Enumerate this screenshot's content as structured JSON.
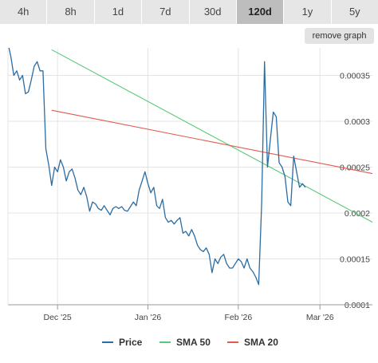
{
  "tabs": [
    {
      "label": "4h"
    },
    {
      "label": "8h"
    },
    {
      "label": "1d"
    },
    {
      "label": "7d"
    },
    {
      "label": "30d"
    },
    {
      "label": "120d",
      "active": true
    },
    {
      "label": "1y"
    },
    {
      "label": "5y"
    }
  ],
  "remove_graph_label": "remove graph",
  "chart_data": {
    "type": "line",
    "x_ticks": [
      "Dec '25",
      "Jan '26",
      "Feb '26",
      "Mar '26"
    ],
    "y_ticks": [
      0.0001,
      0.00015,
      0.0002,
      0.00025,
      0.0003,
      0.00035
    ],
    "y_tick_labels": [
      "0.0001",
      "0.00015",
      "0.0002",
      "0.00025",
      "0.0003",
      "0.00035"
    ],
    "ylim": [
      0.0001,
      0.00038
    ],
    "xlim": [
      "2025-11-14",
      "2026-03-19"
    ],
    "grid": true,
    "legend_position": "bottom",
    "series": [
      {
        "name": "Price",
        "color": "#2b6ca3",
        "points": [
          [
            "2025-11-14",
            0.000385
          ],
          [
            "2025-11-15",
            0.00037
          ],
          [
            "2025-11-16",
            0.00035
          ],
          [
            "2025-11-17",
            0.000355
          ],
          [
            "2025-11-18",
            0.000345
          ],
          [
            "2025-11-19",
            0.00035
          ],
          [
            "2025-11-20",
            0.00033
          ],
          [
            "2025-11-21",
            0.000332
          ],
          [
            "2025-11-22",
            0.000345
          ],
          [
            "2025-11-23",
            0.00036
          ],
          [
            "2025-11-24",
            0.000365
          ],
          [
            "2025-11-25",
            0.000355
          ],
          [
            "2025-11-26",
            0.000355
          ],
          [
            "2025-11-27",
            0.00027
          ],
          [
            "2025-11-28",
            0.000252
          ],
          [
            "2025-11-29",
            0.00023
          ],
          [
            "2025-11-30",
            0.00025
          ],
          [
            "2025-12-01",
            0.000245
          ],
          [
            "2025-12-02",
            0.000258
          ],
          [
            "2025-12-03",
            0.00025
          ],
          [
            "2025-12-04",
            0.000235
          ],
          [
            "2025-12-05",
            0.000245
          ],
          [
            "2025-12-06",
            0.000248
          ],
          [
            "2025-12-07",
            0.000238
          ],
          [
            "2025-12-08",
            0.000225
          ],
          [
            "2025-12-09",
            0.00022
          ],
          [
            "2025-12-10",
            0.000228
          ],
          [
            "2025-12-11",
            0.000218
          ],
          [
            "2025-12-12",
            0.000202
          ],
          [
            "2025-12-13",
            0.000212
          ],
          [
            "2025-12-14",
            0.00021
          ],
          [
            "2025-12-15",
            0.000205
          ],
          [
            "2025-12-16",
            0.000203
          ],
          [
            "2025-12-17",
            0.000208
          ],
          [
            "2025-12-18",
            0.000203
          ],
          [
            "2025-12-19",
            0.000198
          ],
          [
            "2025-12-20",
            0.000205
          ],
          [
            "2025-12-21",
            0.000207
          ],
          [
            "2025-12-22",
            0.000205
          ],
          [
            "2025-12-23",
            0.000207
          ],
          [
            "2025-12-24",
            0.000203
          ],
          [
            "2025-12-25",
            0.000202
          ],
          [
            "2025-12-26",
            0.000207
          ],
          [
            "2025-12-27",
            0.000212
          ],
          [
            "2025-12-28",
            0.000208
          ],
          [
            "2025-12-29",
            0.000225
          ],
          [
            "2025-12-30",
            0.000235
          ],
          [
            "2025-12-31",
            0.000245
          ],
          [
            "2026-01-01",
            0.000232
          ],
          [
            "2026-01-02",
            0.000222
          ],
          [
            "2026-01-03",
            0.000228
          ],
          [
            "2026-01-04",
            0.000208
          ],
          [
            "2026-01-05",
            0.000205
          ],
          [
            "2026-01-06",
            0.000215
          ],
          [
            "2026-01-07",
            0.000195
          ],
          [
            "2026-01-08",
            0.00019
          ],
          [
            "2026-01-09",
            0.000192
          ],
          [
            "2026-01-10",
            0.000188
          ],
          [
            "2026-01-11",
            0.000192
          ],
          [
            "2026-01-12",
            0.000195
          ],
          [
            "2026-01-13",
            0.000178
          ],
          [
            "2026-01-14",
            0.00018
          ],
          [
            "2026-01-15",
            0.000175
          ],
          [
            "2026-01-16",
            0.000182
          ],
          [
            "2026-01-17",
            0.000175
          ],
          [
            "2026-01-18",
            0.000165
          ],
          [
            "2026-01-19",
            0.00016
          ],
          [
            "2026-01-20",
            0.000158
          ],
          [
            "2026-01-21",
            0.000162
          ],
          [
            "2026-01-22",
            0.000155
          ],
          [
            "2026-01-23",
            0.000135
          ],
          [
            "2026-01-24",
            0.00015
          ],
          [
            "2026-01-25",
            0.000145
          ],
          [
            "2026-01-26",
            0.000152
          ],
          [
            "2026-01-27",
            0.000155
          ],
          [
            "2026-01-28",
            0.000145
          ],
          [
            "2026-01-29",
            0.00014
          ],
          [
            "2026-01-30",
            0.00014
          ],
          [
            "2026-01-31",
            0.000145
          ],
          [
            "2026-02-01",
            0.00015
          ],
          [
            "2026-02-02",
            0.000147
          ],
          [
            "2026-02-03",
            0.00014
          ],
          [
            "2026-02-04",
            0.00015
          ],
          [
            "2026-02-05",
            0.00014
          ],
          [
            "2026-02-06",
            0.000136
          ],
          [
            "2026-02-07",
            0.00013
          ],
          [
            "2026-02-08",
            0.000122
          ],
          [
            "2026-02-09",
            0.00021
          ],
          [
            "2026-02-10",
            0.000365
          ],
          [
            "2026-02-11",
            0.00025
          ],
          [
            "2026-02-12",
            0.00028
          ],
          [
            "2026-02-13",
            0.00031
          ],
          [
            "2026-02-14",
            0.000305
          ],
          [
            "2026-02-15",
            0.000255
          ],
          [
            "2026-02-16",
            0.00025
          ],
          [
            "2026-02-17",
            0.00024
          ],
          [
            "2026-02-18",
            0.000212
          ],
          [
            "2026-02-19",
            0.000208
          ],
          [
            "2026-02-20",
            0.000262
          ],
          [
            "2026-02-21",
            0.000245
          ],
          [
            "2026-02-22",
            0.000228
          ],
          [
            "2026-02-23",
            0.000232
          ],
          [
            "2026-02-24",
            0.000228
          ]
        ]
      },
      {
        "name": "SMA 50",
        "color": "#5bc878",
        "points": [
          [
            "2025-11-29",
            0.000378
          ],
          [
            "2026-03-19",
            0.00019
          ]
        ]
      },
      {
        "name": "SMA 20",
        "color": "#e05a4f",
        "points": [
          [
            "2025-11-29",
            0.000312
          ],
          [
            "2026-03-19",
            0.000243
          ]
        ]
      }
    ]
  }
}
